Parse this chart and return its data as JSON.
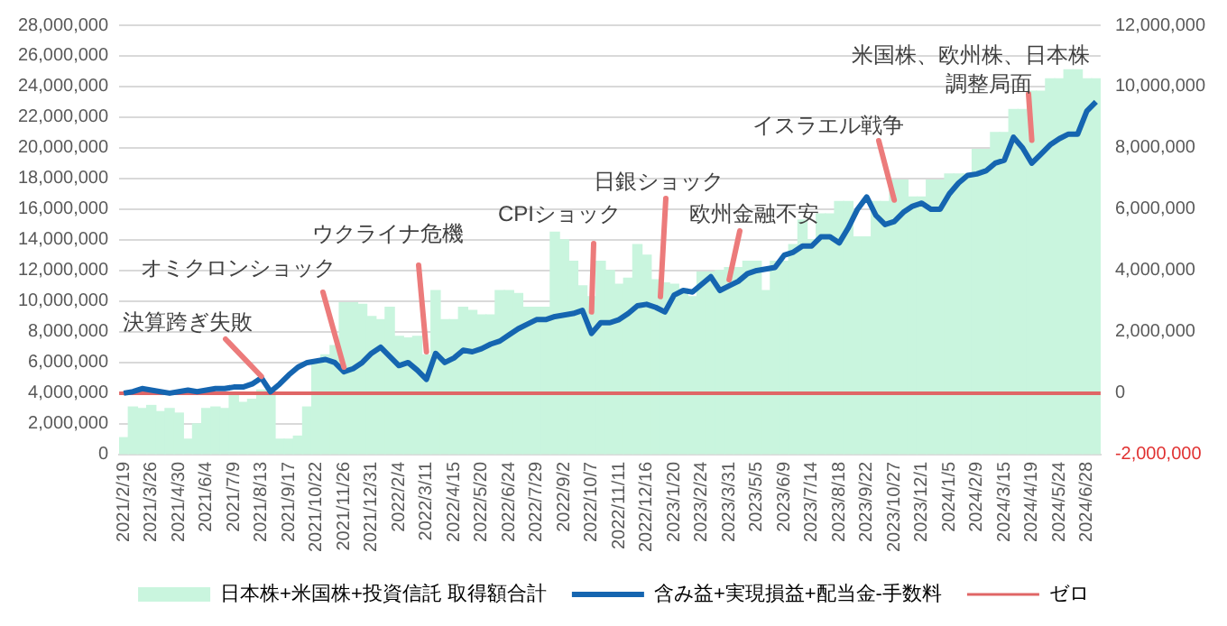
{
  "chart_data": {
    "type": "bar",
    "categories": [
      "2021/2/19",
      null,
      null,
      "2021/3/26",
      null,
      null,
      "2021/4/30",
      null,
      null,
      "2021/6/4",
      null,
      null,
      "2021/7/9",
      null,
      null,
      "2021/8/13",
      null,
      null,
      "2021/9/17",
      null,
      null,
      "2021/10/22",
      null,
      null,
      "2021/11/26",
      null,
      null,
      "2021/12/31",
      null,
      null,
      "2022/2/4",
      null,
      null,
      "2022/3/11",
      null,
      null,
      "2022/4/15",
      null,
      null,
      "2022/5/20",
      null,
      null,
      "2022/6/24",
      null,
      null,
      "2022/7/29",
      null,
      null,
      "2022/9/2",
      null,
      null,
      "2022/10/7",
      null,
      null,
      "2022/11/11",
      null,
      null,
      "2022/12/16",
      null,
      null,
      "2023/1/20",
      null,
      null,
      "2023/2/24",
      null,
      null,
      "2023/3/31",
      null,
      null,
      "2023/5/5",
      null,
      null,
      "2023/6/9",
      null,
      null,
      "2023/7/14",
      null,
      null,
      "2023/8/18",
      null,
      null,
      "2023/9/22",
      null,
      null,
      "2023/10/27",
      null,
      null,
      "2023/12/1",
      null,
      null,
      "2024/1/5",
      null,
      null,
      "2024/2/9",
      null,
      null,
      "2024/3/15",
      null,
      null,
      "2024/4/19",
      null,
      null,
      "2024/5/24",
      null,
      null,
      "2024/6/28",
      null
    ],
    "series": [
      {
        "name": "日本株+米国株+投資信託 取得額合計",
        "color": "#c9f5de",
        "values": [
          1100000,
          3100000,
          3000000,
          3200000,
          2800000,
          3000000,
          2700000,
          1000000,
          2000000,
          3000000,
          3100000,
          3000000,
          3900000,
          3400000,
          3600000,
          4200000,
          4000000,
          1000000,
          1000000,
          1200000,
          3100000,
          6000000,
          6500000,
          7100000,
          9900000,
          9900000,
          9800000,
          9000000,
          8800000,
          9600000,
          7700000,
          7600000,
          7700000,
          6500000,
          10700000,
          8800000,
          8800000,
          9600000,
          9400000,
          9100000,
          9100000,
          10700000,
          10700000,
          10500000,
          9600000,
          9600000,
          9600000,
          14500000,
          14000000,
          12600000,
          11000000,
          10300000,
          12600000,
          12000000,
          11100000,
          11500000,
          13700000,
          13000000,
          11400000,
          11200000,
          11100000,
          10800000,
          10300000,
          11900000,
          11900000,
          12000000,
          12200000,
          12200000,
          12600000,
          12600000,
          10700000,
          12600000,
          12600000,
          13700000,
          15300000,
          14000000,
          15700000,
          15700000,
          16500000,
          16500000,
          14200000,
          14200000,
          16500000,
          16500000,
          17900000,
          17900000,
          16800000,
          16800000,
          17900000,
          17900000,
          18300000,
          18300000,
          18300000,
          19900000,
          19900000,
          21000000,
          21000000,
          22500000,
          22500000,
          23700000,
          23700000,
          24500000,
          24500000,
          25100000,
          25100000,
          24500000,
          24500000
        ]
      },
      {
        "name": "含み益+実現損益+配当金-手数料",
        "type": "line",
        "axis": "y2",
        "color": "#1565b0",
        "values": [
          0,
          50000,
          150000,
          100000,
          50000,
          0,
          50000,
          100000,
          50000,
          100000,
          150000,
          150000,
          200000,
          200000,
          300000,
          500000,
          50000,
          300000,
          600000,
          850000,
          1000000,
          1050000,
          1100000,
          1000000,
          700000,
          800000,
          1000000,
          1300000,
          1500000,
          1200000,
          900000,
          1000000,
          750000,
          450000,
          1300000,
          1000000,
          1150000,
          1400000,
          1350000,
          1450000,
          1600000,
          1700000,
          1900000,
          2100000,
          2250000,
          2400000,
          2400000,
          2500000,
          2550000,
          2600000,
          2700000,
          1950000,
          2300000,
          2300000,
          2400000,
          2600000,
          2850000,
          2900000,
          2800000,
          2650000,
          3200000,
          3350000,
          3300000,
          3550000,
          3800000,
          3350000,
          3500000,
          3650000,
          3900000,
          4000000,
          4050000,
          4100000,
          4500000,
          4600000,
          4800000,
          4800000,
          5100000,
          5100000,
          4900000,
          5400000,
          6000000,
          6400000,
          5800000,
          5500000,
          5600000,
          5900000,
          6100000,
          6200000,
          6000000,
          6000000,
          6500000,
          6850000,
          7100000,
          7150000,
          7250000,
          7500000,
          7600000,
          8350000,
          8000000,
          7500000,
          7800000,
          8100000,
          8300000,
          8450000,
          8450000,
          9200000,
          9500000
        ]
      }
    ],
    "ylim": [
      0,
      28000000
    ],
    "yticks": [
      0,
      {
        "value": 2000000,
        "label": "2,000,000"
      },
      {
        "value": 4000000,
        "label": "4,000,000"
      },
      {
        "value": 6000000,
        "label": "6,000,000"
      },
      {
        "value": 8000000,
        "label": "8,000,000"
      },
      {
        "value": 10000000,
        "label": "10,000,000"
      },
      {
        "value": 12000000,
        "label": "12,000,000"
      },
      {
        "value": 14000000,
        "label": "14,000,000"
      },
      {
        "value": 16000000,
        "label": "16,000,000"
      },
      {
        "value": 18000000,
        "label": "18,000,000"
      },
      {
        "value": 20000000,
        "label": "20,000,000"
      },
      {
        "value": 22000000,
        "label": "22,000,000"
      },
      {
        "value": 24000000,
        "label": "24,000,000"
      },
      {
        "value": 26000000,
        "label": "26,000,000"
      },
      {
        "value": 28000000,
        "label": "28,000,000"
      }
    ],
    "y2lim": [
      -2000000,
      12000000
    ],
    "y2ticks": [
      {
        "value": -2000000,
        "label": "-2,000,000"
      },
      0,
      {
        "value": 2000000,
        "label": "2,000,000"
      },
      {
        "value": 4000000,
        "label": "4,000,000"
      },
      {
        "value": 6000000,
        "label": "6,000,000"
      },
      {
        "value": 8000000,
        "label": "8,000,000"
      },
      {
        "value": 10000000,
        "label": "10,000,000"
      },
      {
        "value": 12000000,
        "label": "12,000,000"
      }
    ],
    "ref_lines": [
      {
        "axis": "y2",
        "value": 0,
        "label": "ゼロ",
        "color": "#e06666"
      }
    ],
    "annotations": [
      {
        "text": "決算跨ぎ失敗",
        "x": "2021/8/13",
        "y": 5100000
      },
      {
        "text": "オミクロンショック",
        "x": "2021/11/26",
        "y": 5700000
      },
      {
        "text": "ウクライナ危機",
        "x": "2022/3/11",
        "y": 6700000
      },
      {
        "text": "CPIショック",
        "x": "2022/10/7",
        "y": 9300000
      },
      {
        "text": "日銀ショック",
        "y": 10300000
      },
      {
        "text": "欧州金融不安",
        "x": "2023/3/31",
        "y": 11400000
      },
      {
        "text": "イスラエル戦争",
        "x": "2023/10/27",
        "y": 16600000
      },
      {
        "text": "米国株、欧州株、日本株調整局面",
        "x": "2024/4/19",
        "y": 20500000
      }
    ],
    "grid": "y",
    "legend": "bottom",
    "marker": "none",
    "line_style": "solid"
  }
}
